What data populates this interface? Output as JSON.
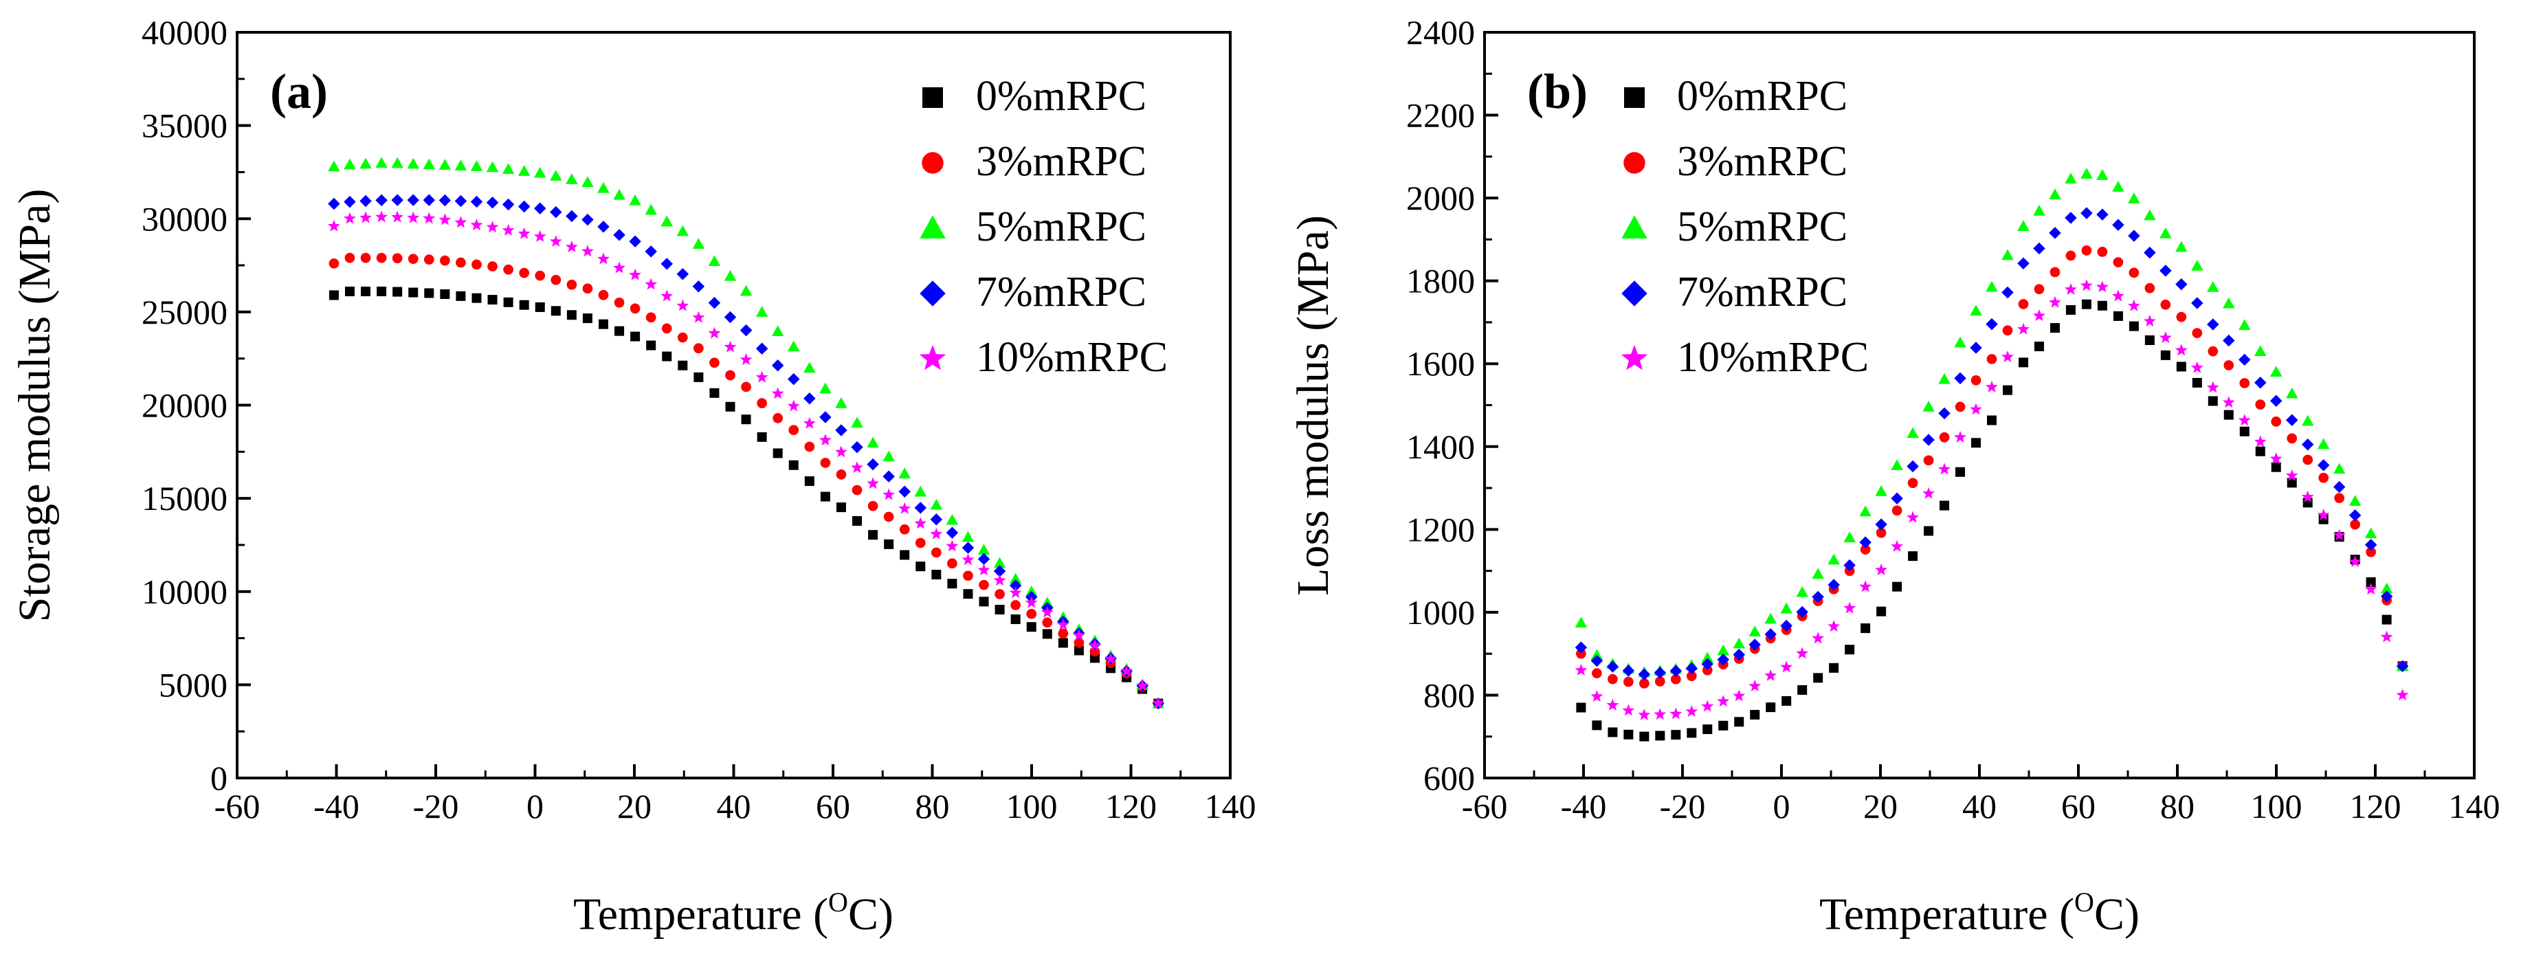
{
  "figure": {
    "panels": [
      "a",
      "b"
    ]
  },
  "chart_data": [
    {
      "id": "a",
      "type": "scatter",
      "panel_label": "(a)",
      "xlabel_main": "Temperature",
      "xlabel_unit_open": "(",
      "xlabel_unit_sup": "O",
      "xlabel_unit_close": "C)",
      "ylabel": "Storage modulus (MPa)",
      "xlim": [
        -60,
        140
      ],
      "ylim": [
        0,
        40000
      ],
      "xticks": [
        -60,
        -40,
        -20,
        0,
        20,
        40,
        60,
        80,
        100,
        120,
        140
      ],
      "yticks": [
        0,
        5000,
        10000,
        15000,
        20000,
        25000,
        30000,
        35000,
        40000
      ],
      "legend_position": "top-right",
      "series": [
        {
          "name": "0%mRPC",
          "marker": "square",
          "color": "#000000",
          "keypoints": [
            [
              -40.5,
              25900
            ],
            [
              -38,
              26100
            ],
            [
              -30,
              26100
            ],
            [
              -20,
              26000
            ],
            [
              -10,
              25700
            ],
            [
              0,
              25300
            ],
            [
              10,
              24700
            ],
            [
              20,
              23700
            ],
            [
              30,
              22100
            ],
            [
              40,
              19800
            ],
            [
              50,
              17200
            ],
            [
              60,
              14800
            ],
            [
              70,
              12700
            ],
            [
              80,
              11000
            ],
            [
              90,
              9500
            ],
            [
              100,
              8100
            ],
            [
              110,
              6800
            ],
            [
              120,
              5300
            ],
            [
              125.5,
              4000
            ]
          ]
        },
        {
          "name": "3%mRPC",
          "marker": "circle",
          "color": "#ff0000",
          "keypoints": [
            [
              -40.5,
              27600
            ],
            [
              -38,
              27900
            ],
            [
              -30,
              27900
            ],
            [
              -20,
              27800
            ],
            [
              -10,
              27500
            ],
            [
              0,
              27000
            ],
            [
              10,
              26300
            ],
            [
              20,
              25200
            ],
            [
              30,
              23600
            ],
            [
              40,
              21500
            ],
            [
              50,
              19100
            ],
            [
              60,
              16600
            ],
            [
              70,
              14200
            ],
            [
              80,
              12200
            ],
            [
              90,
              10400
            ],
            [
              100,
              8800
            ],
            [
              110,
              7200
            ],
            [
              120,
              5500
            ],
            [
              125.5,
              4000
            ]
          ]
        },
        {
          "name": "5%mRPC",
          "marker": "triangle",
          "color": "#00ff00",
          "keypoints": [
            [
              -40.5,
              32800
            ],
            [
              -38,
              32900
            ],
            [
              -30,
              33000
            ],
            [
              -20,
              32900
            ],
            [
              -10,
              32800
            ],
            [
              0,
              32500
            ],
            [
              10,
              32000
            ],
            [
              20,
              31000
            ],
            [
              30,
              29300
            ],
            [
              40,
              26800
            ],
            [
              50,
              23700
            ],
            [
              60,
              20500
            ],
            [
              70,
              17500
            ],
            [
              80,
              14800
            ],
            [
              90,
              12300
            ],
            [
              100,
              10000
            ],
            [
              110,
              7900
            ],
            [
              120,
              5700
            ],
            [
              125.5,
              4000
            ]
          ]
        },
        {
          "name": "7%mRPC",
          "marker": "diamond",
          "color": "#0000ff",
          "keypoints": [
            [
              -40.5,
              30800
            ],
            [
              -38,
              30900
            ],
            [
              -30,
              31000
            ],
            [
              -20,
              31000
            ],
            [
              -10,
              30900
            ],
            [
              0,
              30600
            ],
            [
              10,
              30000
            ],
            [
              20,
              28800
            ],
            [
              30,
              27000
            ],
            [
              40,
              24600
            ],
            [
              50,
              21900
            ],
            [
              60,
              19000
            ],
            [
              70,
              16400
            ],
            [
              80,
              14000
            ],
            [
              90,
              11800
            ],
            [
              100,
              9700
            ],
            [
              110,
              7700
            ],
            [
              120,
              5600
            ],
            [
              125.5,
              4000
            ]
          ]
        },
        {
          "name": "10%mRPC",
          "marker": "star",
          "color": "#ff00ff",
          "keypoints": [
            [
              -40.5,
              29600
            ],
            [
              -38,
              30000
            ],
            [
              -30,
              30100
            ],
            [
              -20,
              30000
            ],
            [
              -10,
              29600
            ],
            [
              0,
              29100
            ],
            [
              10,
              28300
            ],
            [
              20,
              27000
            ],
            [
              30,
              25300
            ],
            [
              40,
              23000
            ],
            [
              50,
              20400
            ],
            [
              60,
              17800
            ],
            [
              70,
              15400
            ],
            [
              80,
              13200
            ],
            [
              90,
              11200
            ],
            [
              100,
              9400
            ],
            [
              110,
              7600
            ],
            [
              120,
              5600
            ],
            [
              125.5,
              4000
            ]
          ]
        }
      ]
    },
    {
      "id": "b",
      "type": "scatter",
      "panel_label": "(b)",
      "xlabel_main": "Temperature",
      "xlabel_unit_open": "(",
      "xlabel_unit_sup": "O",
      "xlabel_unit_close": "C)",
      "ylabel": "Loss modulus (MPa)",
      "xlim": [
        -60,
        140
      ],
      "ylim": [
        600,
        2400
      ],
      "xticks": [
        -60,
        -40,
        -20,
        0,
        20,
        40,
        60,
        80,
        100,
        120,
        140
      ],
      "yticks": [
        600,
        800,
        1000,
        1200,
        1400,
        1600,
        1800,
        2000,
        2200,
        2400
      ],
      "legend_position": "top-left",
      "series": [
        {
          "name": "0%mRPC",
          "marker": "square",
          "color": "#000000",
          "keypoints": [
            [
              -40.5,
              770
            ],
            [
              -38,
              730
            ],
            [
              -34,
              710
            ],
            [
              -28,
              700
            ],
            [
              -20,
              705
            ],
            [
              -10,
              730
            ],
            [
              0,
              780
            ],
            [
              10,
              860
            ],
            [
              20,
              1000
            ],
            [
              30,
              1200
            ],
            [
              40,
              1420
            ],
            [
              50,
              1620
            ],
            [
              60,
              1745
            ],
            [
              65,
              1740
            ],
            [
              70,
              1700
            ],
            [
              80,
              1600
            ],
            [
              90,
              1480
            ],
            [
              100,
              1350
            ],
            [
              110,
              1220
            ],
            [
              118,
              1100
            ],
            [
              122,
              990
            ],
            [
              125.5,
              870
            ]
          ]
        },
        {
          "name": "3%mRPC",
          "marker": "circle",
          "color": "#ff0000",
          "keypoints": [
            [
              -40.5,
              900
            ],
            [
              -38,
              855
            ],
            [
              -33,
              835
            ],
            [
              -28,
              828
            ],
            [
              -20,
              840
            ],
            [
              -10,
              880
            ],
            [
              0,
              950
            ],
            [
              10,
              1050
            ],
            [
              20,
              1190
            ],
            [
              30,
              1370
            ],
            [
              40,
              1570
            ],
            [
              50,
              1760
            ],
            [
              60,
              1875
            ],
            [
              65,
              1870
            ],
            [
              70,
              1830
            ],
            [
              80,
              1720
            ],
            [
              90,
              1600
            ],
            [
              100,
              1460
            ],
            [
              110,
              1320
            ],
            [
              118,
              1180
            ],
            [
              122,
              1040
            ],
            [
              125.5,
              870
            ]
          ]
        },
        {
          "name": "5%mRPC",
          "marker": "triangle",
          "color": "#00ff00",
          "keypoints": [
            [
              -40.5,
              975
            ],
            [
              -38,
              900
            ],
            [
              -33,
              870
            ],
            [
              -28,
              855
            ],
            [
              -20,
              865
            ],
            [
              -10,
              915
            ],
            [
              0,
              1000
            ],
            [
              10,
              1120
            ],
            [
              20,
              1290
            ],
            [
              30,
              1500
            ],
            [
              40,
              1740
            ],
            [
              50,
              1950
            ],
            [
              60,
              2060
            ],
            [
              65,
              2055
            ],
            [
              70,
              2010
            ],
            [
              80,
              1890
            ],
            [
              90,
              1750
            ],
            [
              100,
              1580
            ],
            [
              110,
              1400
            ],
            [
              118,
              1230
            ],
            [
              122,
              1070
            ],
            [
              125.5,
              870
            ]
          ]
        },
        {
          "name": "7%mRPC",
          "marker": "diamond",
          "color": "#0000ff",
          "keypoints": [
            [
              -40.5,
              915
            ],
            [
              -38,
              885
            ],
            [
              -33,
              865
            ],
            [
              -28,
              850
            ],
            [
              -20,
              860
            ],
            [
              -10,
              890
            ],
            [
              0,
              960
            ],
            [
              10,
              1060
            ],
            [
              20,
              1210
            ],
            [
              30,
              1420
            ],
            [
              40,
              1650
            ],
            [
              50,
              1860
            ],
            [
              60,
              1965
            ],
            [
              65,
              1960
            ],
            [
              70,
              1920
            ],
            [
              80,
              1800
            ],
            [
              90,
              1660
            ],
            [
              100,
              1510
            ],
            [
              110,
              1350
            ],
            [
              118,
              1200
            ],
            [
              122,
              1050
            ],
            [
              125.5,
              870
            ]
          ]
        },
        {
          "name": "10%mRPC",
          "marker": "star",
          "color": "#ff00ff",
          "keypoints": [
            [
              -40.5,
              860
            ],
            [
              -38,
              800
            ],
            [
              -33,
              770
            ],
            [
              -28,
              752
            ],
            [
              -20,
              755
            ],
            [
              -10,
              790
            ],
            [
              0,
              860
            ],
            [
              10,
              960
            ],
            [
              20,
              1100
            ],
            [
              30,
              1290
            ],
            [
              40,
              1500
            ],
            [
              50,
              1700
            ],
            [
              60,
              1790
            ],
            [
              65,
              1785
            ],
            [
              70,
              1750
            ],
            [
              80,
              1640
            ],
            [
              90,
              1510
            ],
            [
              100,
              1370
            ],
            [
              110,
              1230
            ],
            [
              118,
              1090
            ],
            [
              122,
              950
            ],
            [
              125.5,
              800
            ]
          ]
        }
      ]
    }
  ]
}
